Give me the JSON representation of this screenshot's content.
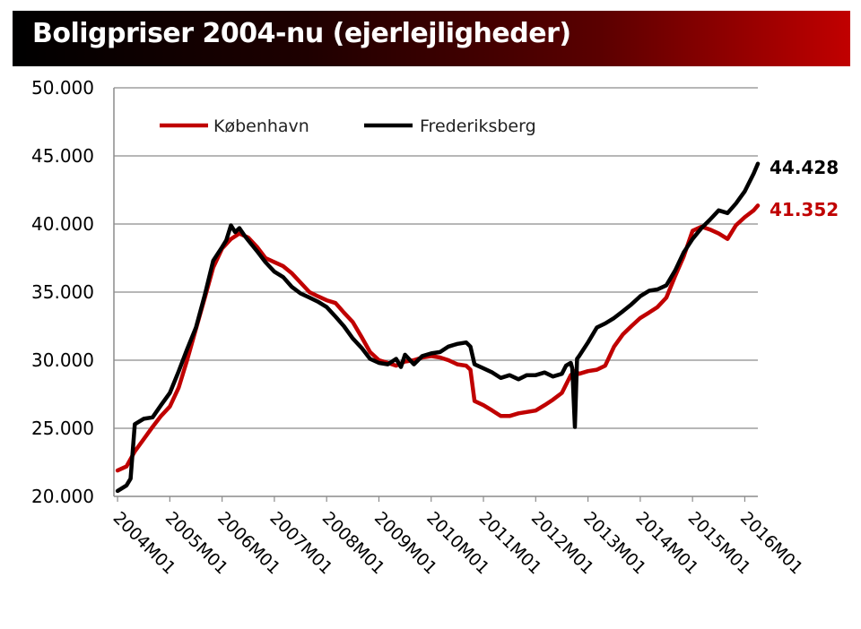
{
  "chart_data": {
    "type": "line",
    "title": "Boligpriser 2004-nu (ejerlejligheder)",
    "xlabel": "",
    "ylabel": "",
    "ylim": [
      20000,
      50000
    ],
    "y_ticks": [
      {
        "value": 20000,
        "label": "20.000"
      },
      {
        "value": 25000,
        "label": "25.000"
      },
      {
        "value": 30000,
        "label": "30.000"
      },
      {
        "value": 35000,
        "label": "35.000"
      },
      {
        "value": 40000,
        "label": "40.000"
      },
      {
        "value": 45000,
        "label": "45.000"
      },
      {
        "value": 50000,
        "label": "50.000"
      }
    ],
    "x_ticks": [
      {
        "value": 2004,
        "label": "2004M01"
      },
      {
        "value": 2005,
        "label": "2005M01"
      },
      {
        "value": 2006,
        "label": "2006M01"
      },
      {
        "value": 2007,
        "label": "2007M01"
      },
      {
        "value": 2008,
        "label": "2008M01"
      },
      {
        "value": 2009,
        "label": "2009M01"
      },
      {
        "value": 2010,
        "label": "2010M01"
      },
      {
        "value": 2011,
        "label": "2011M01"
      },
      {
        "value": 2012,
        "label": "2012M01"
      },
      {
        "value": 2013,
        "label": "2013M01"
      },
      {
        "value": 2014,
        "label": "2014M01"
      },
      {
        "value": 2015,
        "label": "2015M01"
      },
      {
        "value": 2016,
        "label": "2016M01"
      }
    ],
    "xlim": [
      2003.93,
      2016.25
    ],
    "grid": "horizontal",
    "legend_position": "top-left",
    "series": [
      {
        "name": "København",
        "color": "#c00000",
        "end_label": "41.352",
        "points": [
          [
            2004.0,
            21900
          ],
          [
            2004.17,
            22200
          ],
          [
            2004.33,
            23300
          ],
          [
            2004.5,
            24200
          ],
          [
            2004.67,
            25100
          ],
          [
            2004.83,
            25900
          ],
          [
            2005.0,
            26600
          ],
          [
            2005.17,
            28000
          ],
          [
            2005.33,
            30000
          ],
          [
            2005.5,
            32300
          ],
          [
            2005.67,
            34600
          ],
          [
            2005.83,
            36800
          ],
          [
            2006.0,
            38200
          ],
          [
            2006.17,
            38900
          ],
          [
            2006.33,
            39300
          ],
          [
            2006.5,
            39000
          ],
          [
            2006.67,
            38300
          ],
          [
            2006.83,
            37500
          ],
          [
            2007.0,
            37200
          ],
          [
            2007.17,
            36900
          ],
          [
            2007.33,
            36400
          ],
          [
            2007.5,
            35700
          ],
          [
            2007.67,
            35000
          ],
          [
            2007.83,
            34700
          ],
          [
            2008.0,
            34400
          ],
          [
            2008.17,
            34200
          ],
          [
            2008.33,
            33500
          ],
          [
            2008.5,
            32800
          ],
          [
            2008.67,
            31700
          ],
          [
            2008.83,
            30600
          ],
          [
            2009.0,
            30000
          ],
          [
            2009.17,
            29800
          ],
          [
            2009.33,
            29600
          ],
          [
            2009.5,
            29900
          ],
          [
            2009.67,
            30000
          ],
          [
            2009.83,
            30200
          ],
          [
            2010.0,
            30300
          ],
          [
            2010.17,
            30200
          ],
          [
            2010.33,
            30000
          ],
          [
            2010.5,
            29700
          ],
          [
            2010.67,
            29600
          ],
          [
            2010.75,
            29300
          ],
          [
            2010.83,
            27000
          ],
          [
            2011.0,
            26700
          ],
          [
            2011.17,
            26300
          ],
          [
            2011.33,
            25900
          ],
          [
            2011.5,
            25900
          ],
          [
            2011.67,
            26100
          ],
          [
            2011.83,
            26200
          ],
          [
            2012.0,
            26300
          ],
          [
            2012.17,
            26700
          ],
          [
            2012.33,
            27100
          ],
          [
            2012.5,
            27600
          ],
          [
            2012.67,
            28900
          ],
          [
            2012.75,
            29200
          ],
          [
            2012.83,
            29000
          ],
          [
            2013.0,
            29200
          ],
          [
            2013.17,
            29300
          ],
          [
            2013.33,
            29600
          ],
          [
            2013.5,
            31000
          ],
          [
            2013.67,
            31900
          ],
          [
            2013.83,
            32500
          ],
          [
            2014.0,
            33100
          ],
          [
            2014.17,
            33500
          ],
          [
            2014.33,
            33900
          ],
          [
            2014.5,
            34600
          ],
          [
            2014.67,
            36200
          ],
          [
            2014.83,
            37600
          ],
          [
            2015.0,
            39500
          ],
          [
            2015.17,
            39800
          ],
          [
            2015.33,
            39600
          ],
          [
            2015.5,
            39300
          ],
          [
            2015.67,
            38900
          ],
          [
            2015.83,
            39900
          ],
          [
            2016.0,
            40500
          ],
          [
            2016.17,
            41000
          ],
          [
            2016.25,
            41352
          ]
        ]
      },
      {
        "name": "Frederiksberg",
        "color": "#000000",
        "end_label": "44.428",
        "points": [
          [
            2004.0,
            20400
          ],
          [
            2004.17,
            20800
          ],
          [
            2004.25,
            21300
          ],
          [
            2004.33,
            25300
          ],
          [
            2004.5,
            25700
          ],
          [
            2004.67,
            25800
          ],
          [
            2004.83,
            26700
          ],
          [
            2005.0,
            27600
          ],
          [
            2005.17,
            29200
          ],
          [
            2005.33,
            30800
          ],
          [
            2005.5,
            32400
          ],
          [
            2005.67,
            34800
          ],
          [
            2005.83,
            37300
          ],
          [
            2006.0,
            38300
          ],
          [
            2006.08,
            38800
          ],
          [
            2006.17,
            39900
          ],
          [
            2006.25,
            39400
          ],
          [
            2006.33,
            39700
          ],
          [
            2006.42,
            39200
          ],
          [
            2006.5,
            38800
          ],
          [
            2006.67,
            38000
          ],
          [
            2006.83,
            37200
          ],
          [
            2007.0,
            36500
          ],
          [
            2007.17,
            36100
          ],
          [
            2007.33,
            35400
          ],
          [
            2007.5,
            34900
          ],
          [
            2007.67,
            34600
          ],
          [
            2007.83,
            34300
          ],
          [
            2008.0,
            33900
          ],
          [
            2008.17,
            33200
          ],
          [
            2008.33,
            32500
          ],
          [
            2008.5,
            31600
          ],
          [
            2008.67,
            30900
          ],
          [
            2008.83,
            30100
          ],
          [
            2009.0,
            29800
          ],
          [
            2009.17,
            29700
          ],
          [
            2009.33,
            30100
          ],
          [
            2009.42,
            29500
          ],
          [
            2009.5,
            30400
          ],
          [
            2009.67,
            29700
          ],
          [
            2009.83,
            30300
          ],
          [
            2010.0,
            30500
          ],
          [
            2010.17,
            30600
          ],
          [
            2010.33,
            31000
          ],
          [
            2010.5,
            31200
          ],
          [
            2010.67,
            31300
          ],
          [
            2010.75,
            31000
          ],
          [
            2010.83,
            29700
          ],
          [
            2011.0,
            29400
          ],
          [
            2011.17,
            29100
          ],
          [
            2011.33,
            28700
          ],
          [
            2011.5,
            28900
          ],
          [
            2011.67,
            28600
          ],
          [
            2011.83,
            28900
          ],
          [
            2012.0,
            28900
          ],
          [
            2012.17,
            29100
          ],
          [
            2012.33,
            28800
          ],
          [
            2012.5,
            29000
          ],
          [
            2012.58,
            29600
          ],
          [
            2012.67,
            29800
          ],
          [
            2012.7,
            29400
          ],
          [
            2012.75,
            25100
          ],
          [
            2012.79,
            30100
          ],
          [
            2012.83,
            30300
          ],
          [
            2013.0,
            31300
          ],
          [
            2013.17,
            32400
          ],
          [
            2013.33,
            32700
          ],
          [
            2013.5,
            33100
          ],
          [
            2013.67,
            33600
          ],
          [
            2013.83,
            34100
          ],
          [
            2014.0,
            34700
          ],
          [
            2014.17,
            35100
          ],
          [
            2014.33,
            35200
          ],
          [
            2014.5,
            35500
          ],
          [
            2014.67,
            36600
          ],
          [
            2014.83,
            37900
          ],
          [
            2015.0,
            38900
          ],
          [
            2015.17,
            39700
          ],
          [
            2015.33,
            40300
          ],
          [
            2015.5,
            41000
          ],
          [
            2015.67,
            40800
          ],
          [
            2015.83,
            41500
          ],
          [
            2016.0,
            42400
          ],
          [
            2016.17,
            43700
          ],
          [
            2016.25,
            44428
          ]
        ]
      }
    ]
  }
}
